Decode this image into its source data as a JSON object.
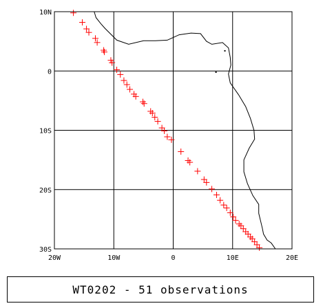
{
  "map": {
    "lon_range": [
      -20,
      20
    ],
    "lat_range": [
      -30,
      10
    ],
    "lon_ticks": [
      {
        "value": -20,
        "label": "20W"
      },
      {
        "value": -10,
        "label": "10W"
      },
      {
        "value": 0,
        "label": "0"
      },
      {
        "value": 10,
        "label": "10E"
      },
      {
        "value": 20,
        "label": "20E"
      }
    ],
    "lat_ticks": [
      {
        "value": 10,
        "label": "10N"
      },
      {
        "value": 0,
        "label": "0"
      },
      {
        "value": -10,
        "label": "10S"
      },
      {
        "value": -20,
        "label": "20S"
      },
      {
        "value": -30,
        "label": "30S"
      }
    ],
    "grid": true,
    "coastline_color": "#000000",
    "marker_color": "#ff0000",
    "marker_symbol": "plus",
    "coastline": [
      [
        -13.3,
        10.0
      ],
      [
        -13.0,
        9.0
      ],
      [
        -12.2,
        8.0
      ],
      [
        -11.5,
        7.2
      ],
      [
        -9.5,
        5.2
      ],
      [
        -7.5,
        4.5
      ],
      [
        -5.0,
        5.1
      ],
      [
        -3.0,
        5.1
      ],
      [
        -1.0,
        5.2
      ],
      [
        1.0,
        6.1
      ],
      [
        3.0,
        6.4
      ],
      [
        4.6,
        6.3
      ],
      [
        5.6,
        5.0
      ],
      [
        6.5,
        4.5
      ],
      [
        8.3,
        4.8
      ],
      [
        9.3,
        3.9
      ],
      [
        9.6,
        2.3
      ],
      [
        9.7,
        1.0
      ],
      [
        9.3,
        -0.5
      ],
      [
        9.6,
        -2.0
      ],
      [
        11.0,
        -4.0
      ],
      [
        12.2,
        -6.0
      ],
      [
        13.0,
        -8.0
      ],
      [
        13.6,
        -10.0
      ],
      [
        13.7,
        -11.5
      ],
      [
        12.8,
        -13.0
      ],
      [
        11.9,
        -15.0
      ],
      [
        11.9,
        -17.0
      ],
      [
        12.5,
        -19.0
      ],
      [
        13.4,
        -21.0
      ],
      [
        14.4,
        -22.5
      ],
      [
        14.4,
        -24.0
      ],
      [
        15.0,
        -26.5
      ],
      [
        15.2,
        -27.5
      ],
      [
        15.8,
        -28.5
      ],
      [
        16.5,
        -29.0
      ],
      [
        17.2,
        -30.0
      ]
    ],
    "islands": [
      [
        8.7,
        3.4
      ],
      [
        7.2,
        -0.2
      ]
    ]
  },
  "track": {
    "name": "WT0202",
    "observations": [
      [
        -16.8,
        9.8
      ],
      [
        -15.3,
        8.2
      ],
      [
        -14.6,
        7.1
      ],
      [
        -14.2,
        6.5
      ],
      [
        -13.1,
        5.5
      ],
      [
        -12.8,
        4.8
      ],
      [
        -11.7,
        3.5
      ],
      [
        -11.6,
        3.2
      ],
      [
        -10.5,
        1.8
      ],
      [
        -10.3,
        1.4
      ],
      [
        -9.5,
        0.2
      ],
      [
        -8.9,
        -0.6
      ],
      [
        -8.3,
        -1.6
      ],
      [
        -7.8,
        -2.3
      ],
      [
        -7.3,
        -3.1
      ],
      [
        -6.6,
        -3.9
      ],
      [
        -6.3,
        -4.3
      ],
      [
        -5.1,
        -5.2
      ],
      [
        -4.9,
        -5.5
      ],
      [
        -3.8,
        -6.8
      ],
      [
        -3.5,
        -7.1
      ],
      [
        -3.1,
        -7.8
      ],
      [
        -2.6,
        -8.5
      ],
      [
        -1.9,
        -9.6
      ],
      [
        -1.5,
        -10.1
      ],
      [
        -1.0,
        -11.1
      ],
      [
        -0.3,
        -11.6
      ],
      [
        1.3,
        -13.6
      ],
      [
        2.5,
        -15.1
      ],
      [
        2.8,
        -15.4
      ],
      [
        4.1,
        -16.9
      ],
      [
        5.2,
        -18.3
      ],
      [
        5.6,
        -18.8
      ],
      [
        6.5,
        -19.9
      ],
      [
        7.3,
        -20.9
      ],
      [
        7.9,
        -21.8
      ],
      [
        8.5,
        -22.6
      ],
      [
        9.0,
        -23.1
      ],
      [
        9.6,
        -23.9
      ],
      [
        10.1,
        -24.6
      ],
      [
        10.5,
        -25.2
      ],
      [
        11.1,
        -25.8
      ],
      [
        11.4,
        -26.1
      ],
      [
        11.8,
        -26.6
      ],
      [
        12.2,
        -27.1
      ],
      [
        12.6,
        -27.5
      ],
      [
        13.0,
        -28.0
      ],
      [
        13.3,
        -28.3
      ],
      [
        13.7,
        -28.8
      ],
      [
        14.1,
        -29.3
      ],
      [
        14.5,
        -29.8
      ]
    ]
  },
  "caption": "WT0202 - 51 observations"
}
